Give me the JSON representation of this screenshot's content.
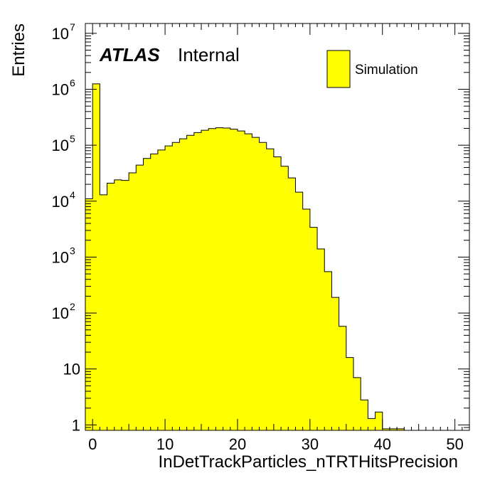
{
  "chart_data": {
    "type": "bar",
    "subtype": "histogram-step-filled",
    "title": "",
    "xlabel": "InDetTrackParticles_nTRTHitsPrecision",
    "ylabel": "Entries",
    "yscale": "log",
    "xlim": [
      -1,
      52
    ],
    "ylim": [
      0.8,
      15000000
    ],
    "bin_width": 1,
    "bin_low_edges": [
      -1,
      0,
      1,
      2,
      3,
      4,
      5,
      6,
      7,
      8,
      9,
      10,
      11,
      12,
      13,
      14,
      15,
      16,
      17,
      18,
      19,
      20,
      21,
      22,
      23,
      24,
      25,
      26,
      27,
      28,
      29,
      30,
      31,
      32,
      33,
      34,
      35,
      36,
      37,
      38,
      39,
      40,
      41,
      42
    ],
    "values": [
      11000,
      1250000,
      13000,
      21000,
      24000,
      23500,
      32000,
      44000,
      58000,
      70000,
      82000,
      97000,
      112000,
      130000,
      150000,
      168000,
      185000,
      198000,
      205000,
      203000,
      193000,
      180000,
      160000,
      138000,
      112000,
      86000,
      62000,
      42000,
      26000,
      14500,
      7200,
      3400,
      1400,
      550,
      190,
      58,
      16,
      7,
      2.8,
      1.3,
      1.7,
      0.85,
      0.85,
      0.85
    ],
    "x_ticks": [
      "0",
      "10",
      "20",
      "30",
      "40",
      "50"
    ],
    "x_tick_values": [
      0,
      10,
      20,
      30,
      40,
      50
    ],
    "y_ticks": [
      "1",
      "10",
      "10",
      "10",
      "10",
      "10",
      "10",
      "10"
    ],
    "y_tick_exponents": [
      "",
      "",
      "2",
      "3",
      "4",
      "5",
      "6",
      "7"
    ],
    "y_tick_values": [
      1,
      10,
      100,
      1000,
      10000,
      100000,
      1000000,
      10000000
    ],
    "fill_color": "#ffff00",
    "line_color": "#000000",
    "legend": {
      "entries": [
        "Simulation"
      ],
      "placement": "top-right"
    },
    "annotation": {
      "bold": "ATLAS",
      "normal": "Internal"
    }
  }
}
